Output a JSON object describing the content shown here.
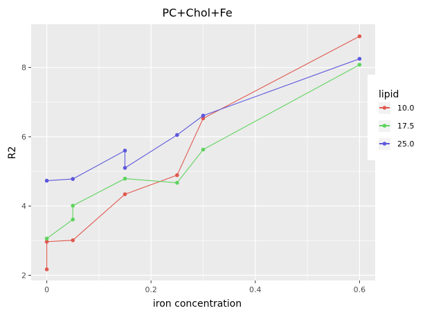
{
  "chart_data": {
    "type": "line",
    "title": "PC+Chol+Fe",
    "xlabel": "iron concentration",
    "ylabel": "R2",
    "xlim": [
      -0.03,
      0.63
    ],
    "ylim": [
      1.85,
      9.25
    ],
    "x_ticks": [
      0,
      0.2,
      0.4,
      0.6
    ],
    "x_tick_labels": [
      "0",
      "0.2",
      "0.4",
      "0.6"
    ],
    "y_ticks": [
      2,
      4,
      6,
      8
    ],
    "y_tick_labels": [
      "2",
      "4",
      "6",
      "8"
    ],
    "grid": true,
    "legend": {
      "title": "lipid",
      "placement": "right"
    },
    "series": [
      {
        "name": "10.0",
        "color": "#E0584F",
        "x": [
          0,
          0,
          0.05,
          0.15,
          0.25,
          0.3,
          0.6
        ],
        "y": [
          2.17,
          2.97,
          3.01,
          4.34,
          4.89,
          6.53,
          8.9
        ]
      },
      {
        "name": "17.5",
        "color": "#5ED35E",
        "x": [
          0,
          0.05,
          0.05,
          0.15,
          0.25,
          0.3,
          0.6
        ],
        "y": [
          3.06,
          3.61,
          4.01,
          4.79,
          4.67,
          5.63,
          8.08
        ]
      },
      {
        "name": "25.0",
        "color": "#5C57DC",
        "x": [
          0,
          0.05,
          0.15,
          0.15,
          0.25,
          0.3,
          0.6
        ],
        "y": [
          4.73,
          4.78,
          5.6,
          5.1,
          6.05,
          6.61,
          8.25
        ]
      }
    ]
  }
}
